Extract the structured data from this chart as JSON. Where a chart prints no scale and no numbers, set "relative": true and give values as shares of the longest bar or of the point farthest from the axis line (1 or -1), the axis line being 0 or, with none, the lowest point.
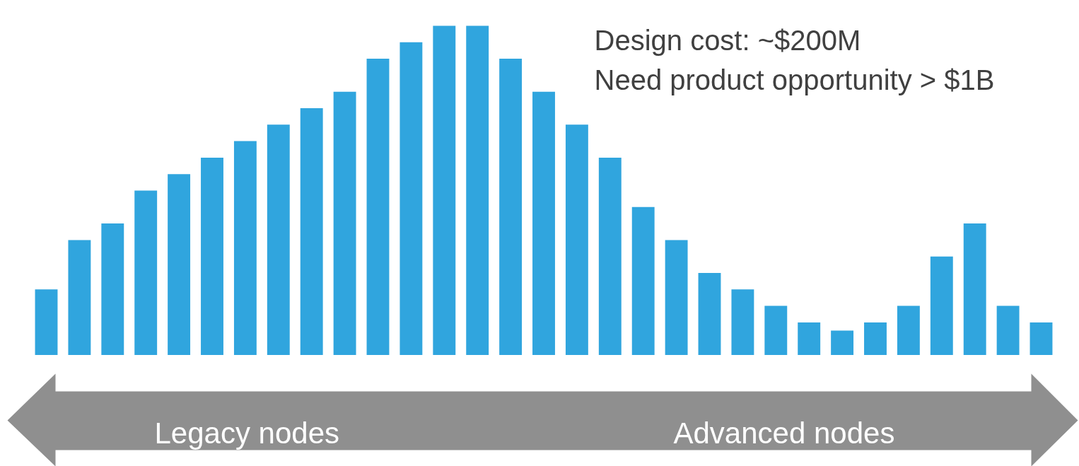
{
  "chart_data": {
    "type": "bar",
    "relative": true,
    "color": "#30a5de",
    "categories": [
      null,
      null,
      null,
      null,
      null,
      null,
      null,
      null,
      null,
      null,
      null,
      null,
      null,
      null,
      null,
      null,
      null,
      null,
      null,
      null,
      null,
      null,
      null,
      null,
      null,
      null,
      null,
      null,
      null,
      null,
      null
    ],
    "values": [
      0.2,
      0.35,
      0.4,
      0.5,
      0.55,
      0.6,
      0.65,
      0.7,
      0.75,
      0.8,
      0.9,
      0.95,
      1,
      1,
      0.9,
      0.8,
      0.7,
      0.6,
      0.45,
      0.35,
      0.25,
      0.2,
      0.15,
      0.1,
      0.075,
      0.1,
      0.15,
      0.3,
      0.4,
      0.15,
      0.1
    ],
    "annotations": [
      "Design cost: ~$200M",
      "Need product opportunity > $1B",
      "Legacy nodes",
      "Advanced nodes"
    ],
    "grid": false
  }
}
